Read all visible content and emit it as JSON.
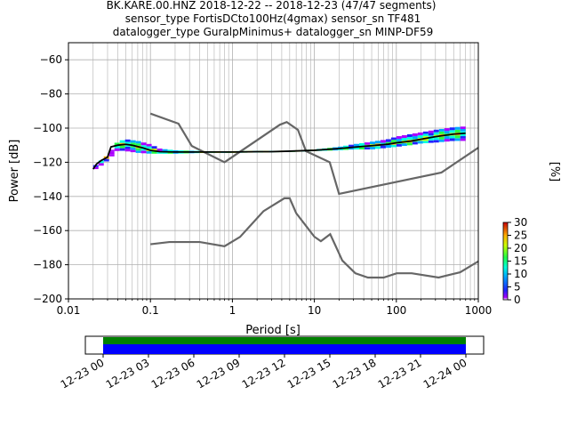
{
  "chart_data": [
    {
      "type": "heatmap",
      "subtype": "ppsd",
      "title_lines": [
        "BK.KARE.00.HNZ   2018-12-22 -- 2018-12-23  (47/47 segments)",
        "sensor_type FortisDCto100Hz(4gmax) sensor_sn TF481",
        "datalogger_type GuralpMinimus+ datalogger_sn MINP-DF59"
      ],
      "xlabel": "Period [s]",
      "ylabel": "Power [dB]",
      "x_scale": "log",
      "xlim": [
        0.01,
        1000
      ],
      "ylim": [
        -200,
        -50
      ],
      "x_ticks": [
        0.01,
        0.1,
        1,
        10,
        100,
        1000
      ],
      "x_tick_labels": [
        "0.01",
        "0.1",
        "1",
        "10",
        "100",
        "1000"
      ],
      "y_ticks": [
        -200,
        -180,
        -160,
        -140,
        -120,
        -100,
        -80,
        -60
      ],
      "y_tick_labels": [
        "−200",
        "−180",
        "−160",
        "−140",
        "−120",
        "−100",
        "−80",
        "−60"
      ],
      "grid": true,
      "colorbar": {
        "label": "[%]",
        "range": [
          0,
          30
        ],
        "ticks": [
          0,
          5,
          10,
          15,
          20,
          25,
          30
        ],
        "tick_labels": [
          "0",
          "5",
          "10",
          "15",
          "20",
          "25",
          "30"
        ]
      },
      "noise_model_high": {
        "x": [
          0.1,
          0.22,
          0.32,
          0.8,
          3.8,
          4.6,
          6.3,
          7.9,
          15.4,
          20,
          354.8,
          1000
        ],
        "y": [
          -91.5,
          -97.4,
          -110.5,
          -120,
          -98,
          -96.5,
          -101,
          -113.5,
          -120,
          -138.5,
          -126,
          -111.5
        ]
      },
      "noise_model_low": {
        "x": [
          0.1,
          0.17,
          0.4,
          0.8,
          1.24,
          2.4,
          4.3,
          5,
          6,
          10,
          12,
          15.6,
          21.9,
          31.6,
          45,
          70,
          101,
          154,
          328,
          600,
          1000
        ],
        "y": [
          -168,
          -166.7,
          -166.7,
          -169.2,
          -163.7,
          -148.6,
          -141.1,
          -141.1,
          -149.8,
          -163.6,
          -166.2,
          -162.1,
          -177.5,
          -185,
          -187.5,
          -187.5,
          -185,
          -185,
          -187.5,
          -184.4,
          -178
        ]
      },
      "mean_curve": {
        "x": [
          0.02,
          0.022,
          0.025,
          0.03,
          0.033,
          0.04,
          0.05,
          0.06,
          0.08,
          0.1,
          0.13,
          0.2,
          0.3,
          0.5,
          1,
          2,
          3,
          5,
          10,
          20,
          30,
          50,
          80,
          100,
          150,
          200,
          300,
          500,
          700
        ],
        "y": [
          -124,
          -121,
          -119,
          -117,
          -111,
          -110,
          -109.5,
          -110,
          -111.5,
          -113,
          -113.8,
          -114,
          -114,
          -114,
          -114,
          -113.8,
          -113.8,
          -113.5,
          -113,
          -112,
          -111.2,
          -110.3,
          -109.4,
          -108.6,
          -107.6,
          -106.5,
          -105,
          -103.5,
          -103
        ]
      },
      "density_spread": {
        "x": [
          0.02,
          0.025,
          0.03,
          0.04,
          0.05,
          0.07,
          0.1,
          0.13,
          0.2,
          0.5,
          1,
          5,
          10,
          20,
          30,
          50,
          80,
          100,
          150,
          200,
          300,
          500,
          700
        ],
        "upper": [
          -123,
          -119,
          -116,
          -108,
          -106.5,
          -107.5,
          -109.5,
          -112,
          -113,
          -113.5,
          -113.5,
          -113.2,
          -112.5,
          -111,
          -109.5,
          -108,
          -106.5,
          -105,
          -103.5,
          -102.5,
          -101,
          -99.5,
          -99
        ],
        "lower": [
          -125,
          -122,
          -119,
          -113,
          -113.5,
          -114.5,
          -115,
          -115,
          -115,
          -114.5,
          -114.5,
          -114,
          -113.5,
          -113,
          -112.5,
          -112.5,
          -111.5,
          -111,
          -110,
          -109,
          -108.5,
          -107.5,
          -107.5
        ]
      }
    },
    {
      "type": "timeline",
      "x_tick_labels": [
        "12-23 00",
        "12-23 03",
        "12-23 06",
        "12-23 09",
        "12-23 12",
        "12-23 15",
        "12-23 18",
        "12-23 21",
        "12-24 00"
      ],
      "tracks": [
        {
          "name": "",
          "color": "#008000"
        },
        {
          "name": "",
          "color": "#0000ff"
        }
      ]
    }
  ],
  "colors": {
    "noise_model": "#666666",
    "mean": "#000000",
    "grid": "#b0b0b0"
  }
}
